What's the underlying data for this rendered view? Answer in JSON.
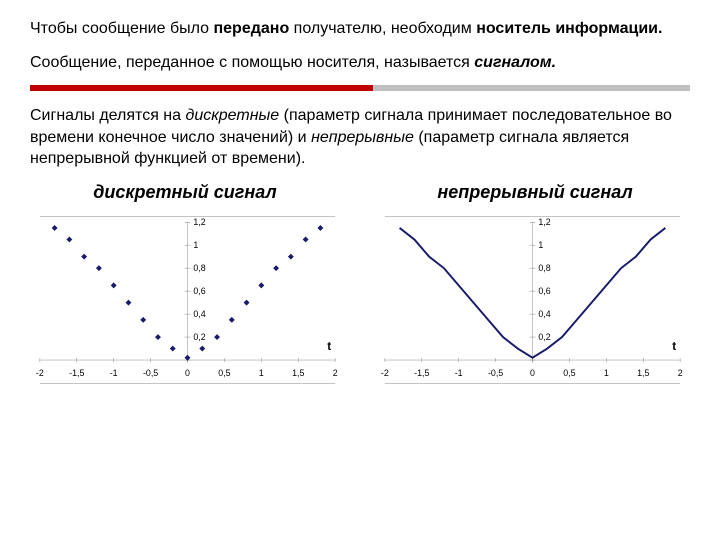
{
  "paragraphs": {
    "p1_a": "Чтобы сообщение было ",
    "p1_b": "передано",
    "p1_c": " получателю, необходим ",
    "p1_d": "носитель информации.",
    "p2_a": "Сообщение, переданное с помощью носителя, называется ",
    "p2_b": "сигналом.",
    "p3_a": "Сигналы делятся на ",
    "p3_b": "дискретные",
    "p3_c": " (параметр сигнала принимает последовательное во времени конечное число значений) и ",
    "p3_d": "непрерывные",
    "p3_e": " (параметр сигнала является непрерывной функцией от времени)."
  },
  "divider": {
    "red_color": "#c00000",
    "gray_color": "#c0c0c0"
  },
  "discrete_chart": {
    "title": "дискретный сигнал",
    "type": "scatter",
    "x_values": [
      -1.8,
      -1.6,
      -1.4,
      -1.2,
      -1.0,
      -0.8,
      -0.6,
      -0.4,
      -0.2,
      0,
      0.2,
      0.4,
      0.6,
      0.8,
      1.0,
      1.2,
      1.4,
      1.6,
      1.8
    ],
    "y_values": [
      1.15,
      1.05,
      0.9,
      0.8,
      0.65,
      0.5,
      0.35,
      0.2,
      0.1,
      0.02,
      0.1,
      0.2,
      0.35,
      0.5,
      0.65,
      0.8,
      0.9,
      1.05,
      1.15
    ],
    "marker_color": "#1a1a6a",
    "marker_style": "diamond",
    "marker_size": 3,
    "xlim": [
      -2,
      2
    ],
    "ylim": [
      0,
      1.2
    ],
    "xticks": [
      -2,
      -1.5,
      -1,
      -0.5,
      0,
      0.5,
      1,
      1.5,
      2
    ],
    "xtick_labels": [
      "-2",
      "-1,5",
      "-1",
      "-0,5",
      "0",
      "0,5",
      "1",
      "1,5",
      "2"
    ],
    "yticks": [
      0,
      0.2,
      0.4,
      0.6,
      0.8,
      1.0,
      1.2
    ],
    "ytick_labels": [
      "0",
      "0,2",
      "0,4",
      "0,6",
      "0,8",
      "1",
      "1,2"
    ],
    "axis_label": "t",
    "background_color": "#ffffff",
    "border_color": "#888888",
    "tick_fontsize": 9
  },
  "continuous_chart": {
    "title": "непрерывный сигнал",
    "type": "line",
    "x_values": [
      -1.8,
      -1.6,
      -1.4,
      -1.2,
      -1.0,
      -0.8,
      -0.6,
      -0.4,
      -0.2,
      0,
      0.2,
      0.4,
      0.6,
      0.8,
      1.0,
      1.2,
      1.4,
      1.6,
      1.8
    ],
    "y_values": [
      1.15,
      1.05,
      0.9,
      0.8,
      0.65,
      0.5,
      0.35,
      0.2,
      0.1,
      0.02,
      0.1,
      0.2,
      0.35,
      0.5,
      0.65,
      0.8,
      0.9,
      1.05,
      1.15
    ],
    "line_color": "#1a1a6a",
    "line_width": 2,
    "xlim": [
      -2,
      2
    ],
    "ylim": [
      0,
      1.2
    ],
    "xticks": [
      -2,
      -1.5,
      -1,
      -0.5,
      0,
      0.5,
      1,
      1.5,
      2
    ],
    "xtick_labels": [
      "-2",
      "-1,5",
      "-1",
      "-0,5",
      "0",
      "0,5",
      "1",
      "1,5",
      "2"
    ],
    "yticks": [
      0,
      0.2,
      0.4,
      0.6,
      0.8,
      1.0,
      1.2
    ],
    "ytick_labels": [
      "0",
      "0,2",
      "0,4",
      "0,6",
      "0,8",
      "1",
      "1,2"
    ],
    "axis_label": "t",
    "background_color": "#ffffff",
    "border_color": "#888888",
    "tick_fontsize": 9
  }
}
